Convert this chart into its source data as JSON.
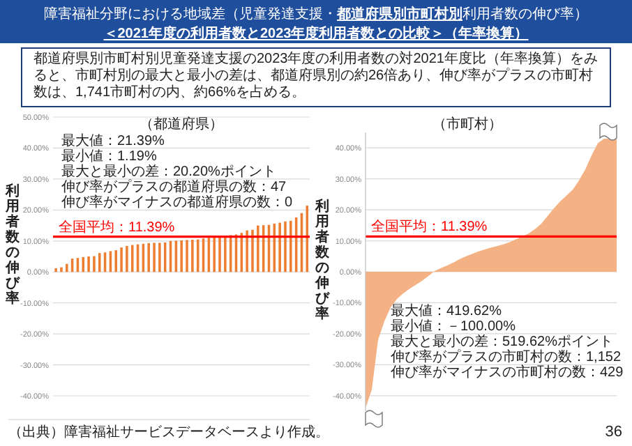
{
  "chart_data": [
    {
      "type": "bar",
      "title": "（都道府県）",
      "ylabel": "利用者数の伸び率",
      "annotations": [
        "障害福祉分野における地域差（児童発達支援・**都道府県別市町村別**利用者数の伸び率）",
        "＜2021年度の利用者数と2023年度利用者数との比較＞（年率換算）",
        "都道府県別市町村別児童発達支援の2023年度の利用者数の対2021年度比（年率換算）をみると、市町村別の最大と最小の差は、都道府県別の約26倍あり、伸び率がプラスの市町村数は、1,741市町村の内、約66%を占める。",
        "最大値：21.39%",
        "最小値：1.19%",
        "最大と最小の差：20.20%ポイント",
        "伸び率がプラスの都道府県の数：47",
        "伸び率がマイナスの都道府県の数：0",
        "（出典）障害福祉サービスデータベースより作成。",
        "36"
      ],
      "categories": [
        null,
        null,
        null,
        null,
        null,
        null,
        null,
        null,
        null,
        null,
        null,
        null,
        null,
        null,
        null,
        null,
        null,
        null,
        null,
        null,
        null,
        null,
        null,
        null,
        null,
        null,
        null,
        null,
        null,
        null,
        null,
        null,
        null,
        null,
        null,
        null,
        null,
        null,
        null,
        null,
        null,
        null,
        null,
        null,
        null,
        null,
        null
      ],
      "values": [
        1.2,
        1.5,
        2.6,
        4.3,
        4.5,
        4.8,
        5.0,
        5.1,
        6.1,
        6.3,
        6.7,
        7.0,
        7.9,
        8.4,
        8.7,
        8.9,
        9.1,
        9.3,
        9.4,
        9.4,
        9.5,
        10.0,
        10.1,
        10.2,
        10.3,
        10.4,
        10.5,
        10.8,
        11.0,
        11.2,
        11.5,
        11.7,
        11.9,
        12.1,
        12.6,
        13.4,
        13.6,
        15.0,
        15.1,
        15.2,
        15.6,
        15.9,
        16.3,
        16.5,
        17.6,
        19.0,
        21.4
      ],
      "color": "#ed7d31",
      "ylim": [
        -40,
        50
      ],
      "yticks": [
        {
          "value": -40,
          "label": "-40.00%"
        },
        {
          "value": -30,
          "label": "-30.00%"
        },
        {
          "value": -20,
          "label": "-20.00%"
        },
        {
          "value": -10,
          "label": "-10.00%"
        },
        {
          "value": 0,
          "label": "0.00%"
        },
        {
          "value": 10,
          "label": "10.00%"
        },
        {
          "value": 20,
          "label": "20.00%"
        },
        {
          "value": 30,
          "label": "30.00%"
        },
        {
          "value": 40,
          "label": "40.00%"
        },
        {
          "value": 50,
          "label": "50.00%"
        }
      ],
      "grid": "y",
      "tick_labels": "y",
      "ref_lines": [
        {
          "axis": "y",
          "value": 11.39,
          "label": "全国平均：11.39%",
          "color": "#ff0000"
        }
      ]
    },
    {
      "type": "area",
      "title": "（市町村）",
      "ylabel": "利用者数の伸び率",
      "annotations": [
        "最大値：419.62%",
        "最小値：－100.00%",
        "最大と最小の差：519.62%ポイント",
        "伸び率がプラスの市町村の数：1,152",
        "伸び率がマイナスの市町村の数：429"
      ],
      "categories": [
        null,
        null,
        null,
        null,
        null,
        null,
        null,
        null,
        null,
        null,
        null,
        null,
        null,
        null,
        null,
        null,
        null,
        null,
        null,
        null,
        null,
        null,
        null,
        null,
        null,
        null,
        null,
        null,
        null,
        null,
        null,
        null,
        null,
        null,
        null,
        null,
        null,
        null,
        null,
        null,
        null
      ],
      "values": [
        -44,
        -38,
        -22,
        -16,
        -11.5,
        -8.8,
        -7,
        -5.5,
        -4.2,
        -2.9,
        -1.4,
        0.2,
        1.2,
        2.0,
        3.0,
        4.1,
        5.0,
        5.8,
        6.6,
        7.2,
        7.8,
        8.3,
        8.9,
        9.6,
        10.5,
        11.4,
        12.4,
        13.8,
        15.5,
        18.0,
        20.5,
        22.7,
        24.6,
        26.5,
        29.5,
        33,
        37.5,
        41.5,
        43,
        43,
        43
      ],
      "color": "#f4b183",
      "ylim": [
        -45,
        45
      ],
      "yticks": [
        {
          "value": -40,
          "label": "-40.00%"
        },
        {
          "value": -30,
          "label": "-30.00%"
        },
        {
          "value": -20,
          "label": "-20.00%"
        },
        {
          "value": -10,
          "label": "-10.00%"
        },
        {
          "value": 0,
          "label": "0.00%"
        },
        {
          "value": 10,
          "label": "10.00%"
        },
        {
          "value": 20,
          "label": "20.00%"
        },
        {
          "value": 30,
          "label": "30.00%"
        },
        {
          "value": 40,
          "label": "40.00%"
        }
      ],
      "grid": "y",
      "tick_labels": "y",
      "ref_lines": [
        {
          "axis": "y",
          "value": 11.39,
          "label": "全国平均：11.39%",
          "color": "#ff0000"
        }
      ]
    }
  ]
}
